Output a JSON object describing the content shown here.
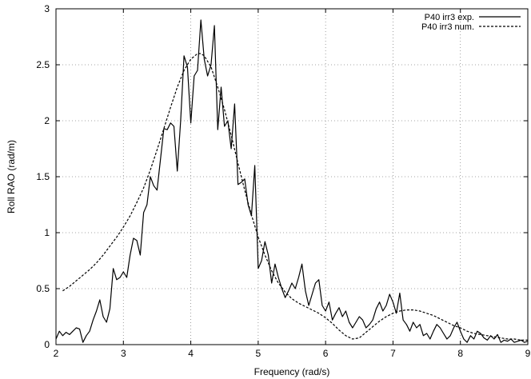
{
  "chart_data": {
    "type": "line",
    "title": "",
    "xlabel": "Frequency  (rad/s)",
    "ylabel": "Roll RAO  (rad/m)",
    "xlim": [
      2,
      9
    ],
    "ylim": [
      0,
      3
    ],
    "xticks": [
      2,
      3,
      4,
      5,
      6,
      7,
      8,
      9
    ],
    "yticks": [
      0,
      0.5,
      1,
      1.5,
      2,
      2.5,
      3
    ],
    "xtick_labels": [
      "2",
      "3",
      "4",
      "5",
      "6",
      "7",
      "8",
      "9"
    ],
    "ytick_labels": [
      "0",
      "0.5",
      "1",
      "1.5",
      "2",
      "2.5",
      "3"
    ],
    "grid": true,
    "legend_position": "top-right",
    "series": [
      {
        "name": "P40  irr3  exp.",
        "style": "solid",
        "color": "#000000",
        "x": [
          2.0,
          2.05,
          2.1,
          2.15,
          2.2,
          2.25,
          2.3,
          2.35,
          2.4,
          2.45,
          2.5,
          2.55,
          2.6,
          2.65,
          2.7,
          2.75,
          2.8,
          2.85,
          2.9,
          2.95,
          3.0,
          3.05,
          3.1,
          3.15,
          3.2,
          3.25,
          3.3,
          3.35,
          3.4,
          3.45,
          3.5,
          3.55,
          3.6,
          3.65,
          3.7,
          3.75,
          3.8,
          3.85,
          3.9,
          3.95,
          4.0,
          4.05,
          4.1,
          4.15,
          4.2,
          4.25,
          4.3,
          4.35,
          4.4,
          4.45,
          4.5,
          4.55,
          4.6,
          4.65,
          4.7,
          4.75,
          4.8,
          4.85,
          4.9,
          4.95,
          5.0,
          5.05,
          5.1,
          5.15,
          5.2,
          5.25,
          5.3,
          5.35,
          5.4,
          5.45,
          5.5,
          5.55,
          5.6,
          5.65,
          5.7,
          5.75,
          5.8,
          5.85,
          5.9,
          5.95,
          6.0,
          6.05,
          6.1,
          6.15,
          6.2,
          6.25,
          6.3,
          6.35,
          6.4,
          6.45,
          6.5,
          6.55,
          6.6,
          6.65,
          6.7,
          6.75,
          6.8,
          6.85,
          6.9,
          6.95,
          7.0,
          7.05,
          7.1,
          7.15,
          7.2,
          7.25,
          7.3,
          7.35,
          7.4,
          7.45,
          7.5,
          7.55,
          7.6,
          7.65,
          7.7,
          7.75,
          7.8,
          7.85,
          7.9,
          7.95,
          8.0,
          8.05,
          8.1,
          8.15,
          8.2,
          8.25,
          8.3,
          8.35,
          8.4,
          8.45,
          8.5,
          8.55,
          8.6,
          8.65,
          8.7,
          8.75,
          8.8,
          8.85,
          8.9,
          8.95,
          9.0
        ],
        "y": [
          0.05,
          0.12,
          0.08,
          0.11,
          0.09,
          0.12,
          0.15,
          0.14,
          0.02,
          0.08,
          0.12,
          0.22,
          0.3,
          0.4,
          0.25,
          0.2,
          0.32,
          0.68,
          0.58,
          0.6,
          0.65,
          0.6,
          0.8,
          0.95,
          0.93,
          0.8,
          1.18,
          1.25,
          1.5,
          1.42,
          1.38,
          1.65,
          1.93,
          1.92,
          1.98,
          1.95,
          1.55,
          2.0,
          2.58,
          2.48,
          1.98,
          2.4,
          2.45,
          2.9,
          2.55,
          2.4,
          2.5,
          2.85,
          1.92,
          2.3,
          1.95,
          2.0,
          1.75,
          2.15,
          1.43,
          1.45,
          1.48,
          1.25,
          1.15,
          1.6,
          0.68,
          0.75,
          0.92,
          0.8,
          0.55,
          0.72,
          0.6,
          0.5,
          0.42,
          0.48,
          0.55,
          0.5,
          0.6,
          0.72,
          0.48,
          0.35,
          0.45,
          0.55,
          0.58,
          0.35,
          0.3,
          0.38,
          0.22,
          0.28,
          0.33,
          0.25,
          0.3,
          0.2,
          0.15,
          0.2,
          0.25,
          0.22,
          0.15,
          0.18,
          0.22,
          0.32,
          0.38,
          0.3,
          0.35,
          0.45,
          0.38,
          0.28,
          0.46,
          0.22,
          0.18,
          0.12,
          0.2,
          0.15,
          0.18,
          0.08,
          0.1,
          0.05,
          0.12,
          0.18,
          0.15,
          0.1,
          0.05,
          0.08,
          0.15,
          0.2,
          0.12,
          0.05,
          0.02,
          0.08,
          0.05,
          0.12,
          0.1,
          0.06,
          0.04,
          0.08,
          0.05,
          0.09,
          0.02,
          0.04,
          0.03,
          0.05,
          0.02,
          0.03,
          0.04,
          0.02,
          0.03
        ]
      },
      {
        "name": "P40  irr3  num.",
        "style": "dashed",
        "color": "#000000",
        "x": [
          2.1,
          2.2,
          2.3,
          2.4,
          2.5,
          2.6,
          2.7,
          2.8,
          2.9,
          3.0,
          3.1,
          3.2,
          3.3,
          3.4,
          3.5,
          3.6,
          3.7,
          3.8,
          3.9,
          4.0,
          4.1,
          4.15,
          4.2,
          4.3,
          4.4,
          4.5,
          4.6,
          4.7,
          4.8,
          4.9,
          5.0,
          5.1,
          5.2,
          5.3,
          5.4,
          5.5,
          5.6,
          5.7,
          5.8,
          5.9,
          6.0,
          6.1,
          6.2,
          6.3,
          6.4,
          6.5,
          6.6,
          6.7,
          6.8,
          6.9,
          7.0,
          7.1,
          7.2,
          7.3,
          7.4,
          7.5,
          7.6,
          7.7,
          7.8,
          7.9,
          8.0,
          8.1,
          8.2,
          8.3,
          8.4,
          8.5,
          8.6,
          8.7,
          8.8,
          8.9,
          9.0
        ],
        "y": [
          0.48,
          0.52,
          0.57,
          0.62,
          0.67,
          0.73,
          0.8,
          0.88,
          0.96,
          1.05,
          1.15,
          1.27,
          1.4,
          1.56,
          1.74,
          1.93,
          2.12,
          2.3,
          2.45,
          2.55,
          2.6,
          2.6,
          2.58,
          2.48,
          2.3,
          2.1,
          1.87,
          1.62,
          1.38,
          1.16,
          0.96,
          0.8,
          0.66,
          0.55,
          0.47,
          0.41,
          0.37,
          0.34,
          0.31,
          0.28,
          0.24,
          0.19,
          0.13,
          0.08,
          0.05,
          0.06,
          0.11,
          0.16,
          0.21,
          0.25,
          0.28,
          0.3,
          0.31,
          0.31,
          0.3,
          0.28,
          0.26,
          0.23,
          0.2,
          0.17,
          0.15,
          0.12,
          0.1,
          0.09,
          0.08,
          0.07,
          0.06,
          0.05,
          0.05,
          0.04,
          0.04
        ]
      }
    ]
  }
}
